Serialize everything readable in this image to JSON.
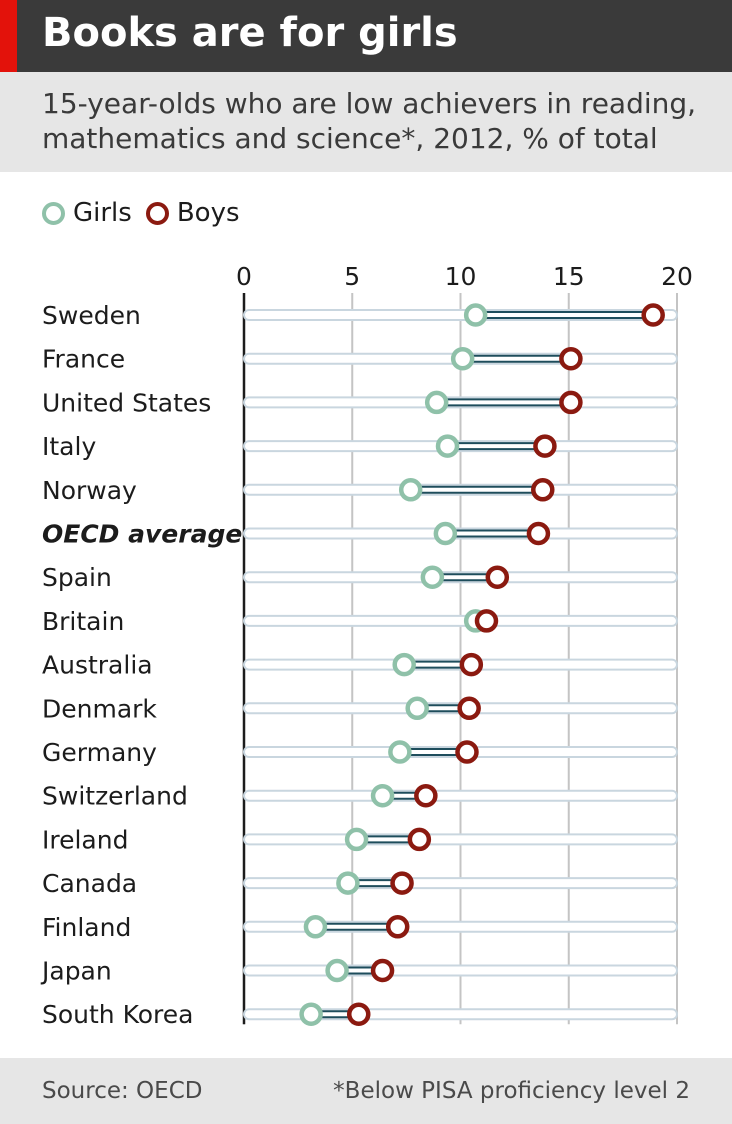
{
  "header": {
    "title": "Books are for girls",
    "subtitle": "15-year-olds who are low achievers in reading, mathematics and science*, 2012, % of total"
  },
  "legend": {
    "girls_label": "Girls",
    "boys_label": "Boys"
  },
  "footer": {
    "source": "Source: OECD",
    "footnote": "*Below PISA proficiency level 2"
  },
  "colors": {
    "girls": "#8fc1a9",
    "boys": "#8b1a10",
    "connector": "#1e4d5c",
    "track": "#c9d6df",
    "accent": "#e3120b"
  },
  "chart_data": {
    "type": "dot-plot",
    "xlim": [
      0,
      20
    ],
    "x_ticks": [
      "0",
      "5",
      "10",
      "15",
      "20"
    ],
    "grid": true,
    "legend_position": "top-left",
    "categories": [
      "Sweden",
      "France",
      "United States",
      "Italy",
      "Norway",
      "OECD average",
      "Spain",
      "Britain",
      "Australia",
      "Denmark",
      "Germany",
      "Switzerland",
      "Ireland",
      "Canada",
      "Finland",
      "Japan",
      "South Korea"
    ],
    "highlight": "OECD average",
    "series": [
      {
        "name": "Girls",
        "values": [
          10.7,
          10.1,
          8.9,
          9.4,
          7.7,
          9.3,
          8.7,
          10.7,
          7.4,
          8.0,
          7.2,
          6.4,
          5.2,
          4.8,
          3.3,
          4.3,
          3.1
        ]
      },
      {
        "name": "Boys",
        "values": [
          18.9,
          15.1,
          15.1,
          13.9,
          13.8,
          13.6,
          11.7,
          11.2,
          10.5,
          10.4,
          10.3,
          8.4,
          8.1,
          7.3,
          7.1,
          6.4,
          5.3
        ]
      }
    ]
  }
}
